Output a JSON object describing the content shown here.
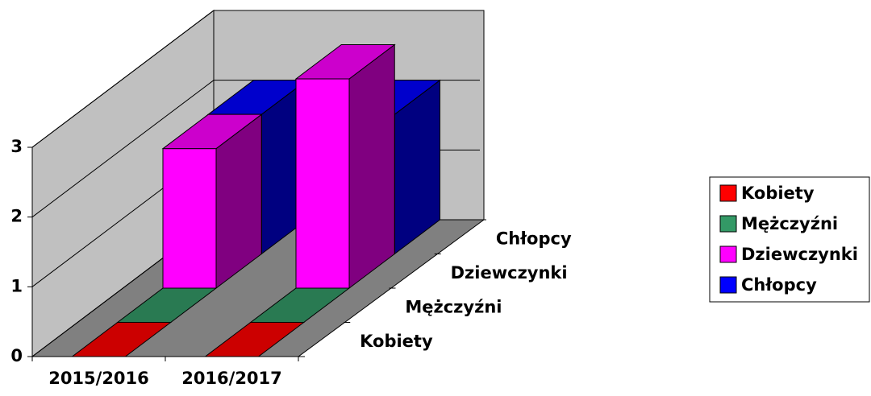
{
  "chart_data": {
    "type": "bar3d",
    "categories": [
      "2015/2016",
      "2016/2017"
    ],
    "series": [
      {
        "name": "Kobiety",
        "color": "#ff0000",
        "values": [
          0,
          0
        ]
      },
      {
        "name": "Mężczyźni",
        "color": "#339966",
        "values": [
          0,
          0
        ]
      },
      {
        "name": "Dziewczynki",
        "color": "#ff00ff",
        "values": [
          2,
          3
        ]
      },
      {
        "name": "Chłopcy",
        "color": "#0000ff",
        "values": [
          2,
          2
        ]
      }
    ],
    "ylim": [
      0,
      3
    ],
    "yticks": [
      0,
      1,
      2,
      3
    ],
    "grid": true,
    "legend": "right"
  }
}
